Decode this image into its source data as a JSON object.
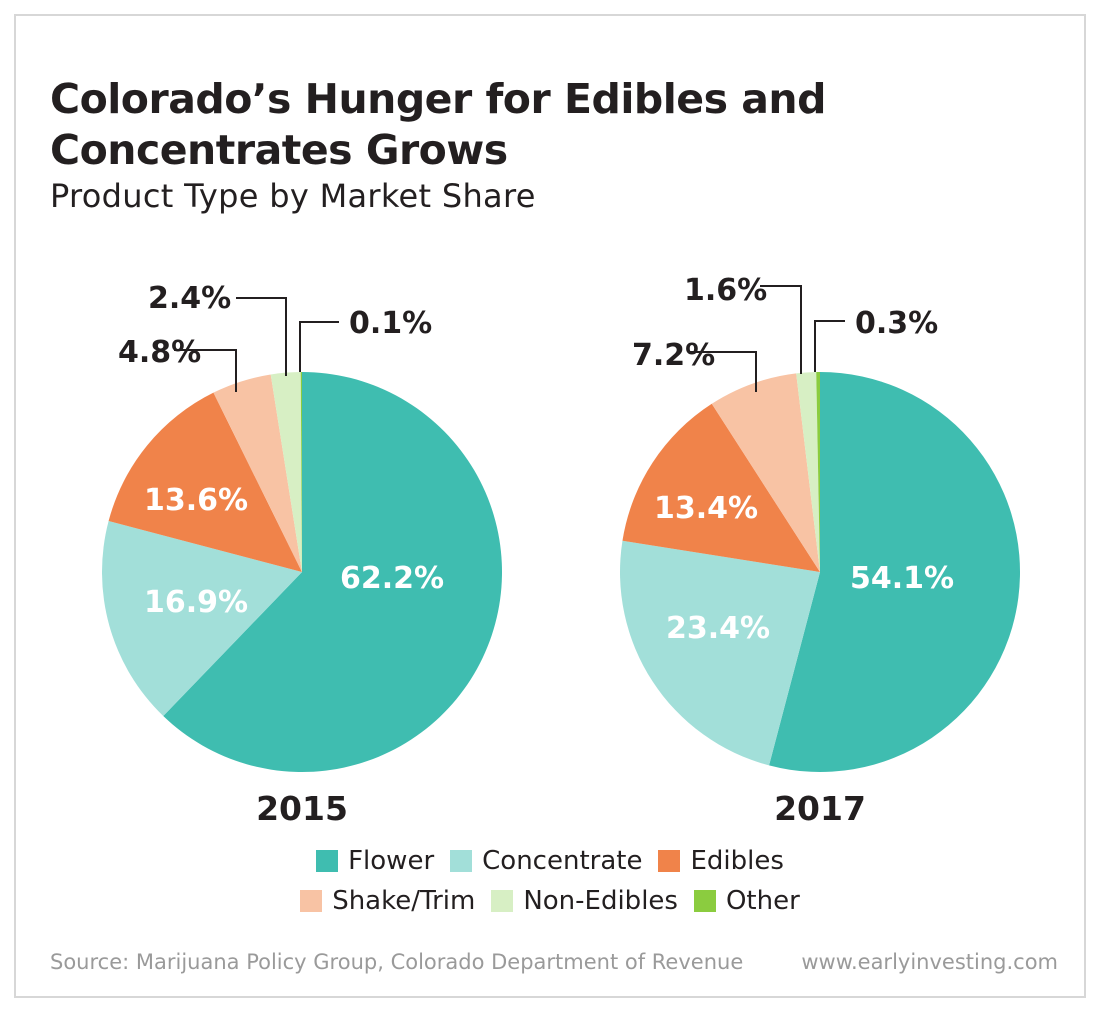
{
  "title": "Colorado’s Hunger for Edibles and Concentrates Grows",
  "subtitle": "Product Type by Market Share",
  "source": "Source: Marijuana Policy Group, Colorado Department of Revenue",
  "website": "www.earlyinvesting.com",
  "legend": [
    {
      "name": "Flower",
      "color": "#3fbdb0"
    },
    {
      "name": "Concentrate",
      "color": "#a2dfd9"
    },
    {
      "name": "Edibles",
      "color": "#f0834a"
    },
    {
      "name": "Shake/Trim",
      "color": "#f8c3a4"
    },
    {
      "name": "Non-Edibles",
      "color": "#d7efc4"
    },
    {
      "name": "Other",
      "color": "#8bcc3f"
    }
  ],
  "chart_data": [
    {
      "type": "pie",
      "title": "2015",
      "categories": [
        "Flower",
        "Concentrate",
        "Edibles",
        "Shake/Trim",
        "Non-Edibles",
        "Other"
      ],
      "values": [
        62.2,
        16.9,
        13.6,
        4.8,
        2.4,
        0.1
      ],
      "labels": [
        "62.2%",
        "16.9%",
        "13.6%",
        "4.8%",
        "2.4%",
        "0.1%"
      ]
    },
    {
      "type": "pie",
      "title": "2017",
      "categories": [
        "Flower",
        "Concentrate",
        "Edibles",
        "Shake/Trim",
        "Non-Edibles",
        "Other"
      ],
      "values": [
        54.1,
        23.4,
        13.4,
        7.2,
        1.6,
        0.3
      ],
      "labels": [
        "54.1%",
        "23.4%",
        "13.4%",
        "7.2%",
        "1.6%",
        "0.3%"
      ]
    }
  ]
}
